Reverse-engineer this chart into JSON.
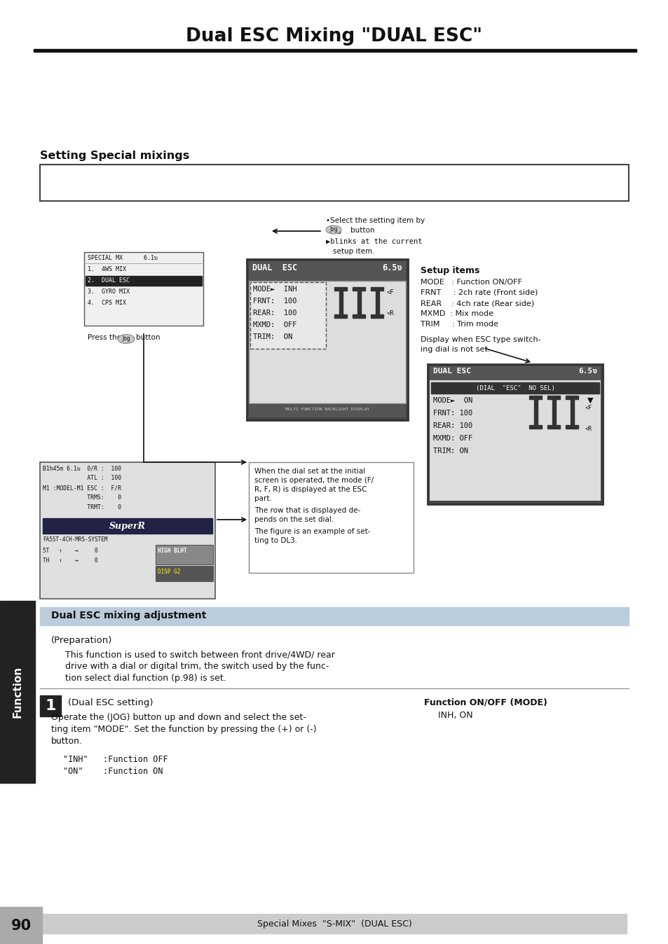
{
  "title": "Dual ESC Mixing \"DUAL ESC\"",
  "background_color": "#ffffff",
  "page_number": "90",
  "footer_text": "Special Mixes  \"S-MIX\"  (DUAL ESC)",
  "section_title": "Setting Special mixings",
  "subsection_title": "Dual ESC mixing adjustment",
  "body_text_1": "(Preparation)",
  "body_text_2_lines": [
    "This function is used to switch between front drive/4WD/ rear",
    "drive with a dial or digital trim, the switch used by the func-",
    "tion select dial function (p.98) is set."
  ],
  "step1_label": "1",
  "step1_title": "(Dual ESC setting)",
  "step1_body_lines": [
    "Operate the (JOG) button up and down and select the set-",
    "ting item \"MODE\". Set the function by pressing the (+) or (-)",
    "button."
  ],
  "inh_line": "\"INH\"   :Function OFF",
  "on_line": "\"ON\"    :Function ON",
  "function_on_off_label": "Function ON/OFF (MODE)",
  "function_on_off_value": "INH, ON",
  "setup_items_title": "Setup items",
  "setup_items": [
    "MODE   : Function ON/OFF",
    "FRNT     : 2ch rate (Front side)",
    "REAR    : 4ch rate (Rear side)",
    "MXMD  : Mix mode",
    "TRIM     : Trim mode"
  ],
  "display_note_lines": [
    "Display when ESC type switch-",
    "ing dial is not set."
  ],
  "select_note1_lines": [
    "•Select the setting item by",
    "Jog button"
  ],
  "select_note2_lines": [
    "▶blinks at the current",
    "setup item."
  ],
  "dial_note_lines": [
    "When the dial set at the initial",
    "screen is operated, the mode (F/",
    "R, F, R) is displayed at the ESC",
    "part.",
    "The row that is displayed de-",
    "pends on the set dial.",
    "The figure is an example of set-",
    "ting to DL3."
  ],
  "press_jog": "Press the",
  "jog_label": "Jog",
  "jog_button": "button",
  "function_sidebar": "Function",
  "special_mx_lines": [
    "SPECIAL MX      6.1ʋ",
    "1.  4WS MIX",
    "2.  DUAL ESC",
    "3.  GYRO MIX",
    "4.  CPS MIX"
  ],
  "center_lcd_title": "DUAL  ESC",
  "center_lcd_val": "6.5ʋ",
  "center_lcd_lines": [
    "MODE►  INH",
    "FRNT:  100",
    "REAR:  100",
    "MXMD:  OFF",
    "TRIM:  ON"
  ],
  "center_lcd_footer": "MULTI FUNCTION BACKLIGHT DISPLAY",
  "second_lcd_title": "DUAL ESC",
  "second_lcd_val": "6.5ʋ",
  "second_lcd_header": "(DIAL  \"ESC\"  NO SEL)",
  "second_lcd_lines": [
    "MODE►  ON",
    "FRNT: 100",
    "REAR: 100",
    "MXMD: OFF",
    "TRIM: ON"
  ],
  "tx_lines": [
    "B1h45m 6.1ʋ  0/R :  100",
    "             ATL :  100",
    "M1 :MODEL-M1 ESC :  F/R",
    "             TRMS:    0",
    "             TRMT:    0"
  ],
  "tx_bottom_lines": [
    "5T   ↑    0",
    "TH   ↑    0"
  ],
  "tx_logo": "SuperR",
  "tx_system": "FA5ST-4CH-MRS-SYSTEM",
  "tx_high": "HIGH BLHT",
  "tx_disp": "DISP G2"
}
